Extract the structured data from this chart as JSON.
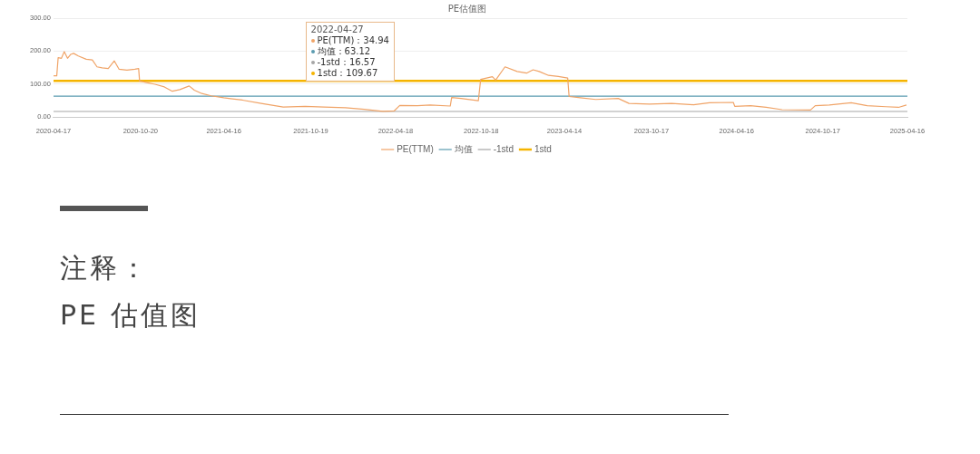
{
  "chart_data": {
    "type": "line",
    "title": "PE估值图",
    "xlim": [
      "2020-04-17",
      "2025-04-16"
    ],
    "xticks": [
      "2020-04-17",
      "2020-10-20",
      "2021-04-16",
      "2021-10-19",
      "2022-04-18",
      "2022-10-18",
      "2023-04-14",
      "2023-10-17",
      "2024-04-16",
      "2024-10-17",
      "2025-04-16"
    ],
    "ylim": [
      0,
      300
    ],
    "yticks": [
      {
        "value": 0,
        "label": "0.00"
      },
      {
        "value": 100,
        "label": "100.00"
      },
      {
        "value": 200,
        "label": "200.00"
      },
      {
        "value": 300,
        "label": "300.00"
      }
    ],
    "grid": "y",
    "legend": "bottom",
    "marker": "none",
    "series": [
      {
        "name": "PE(TTM)",
        "color": "#f0a468",
        "x": [
          "2020-04-17",
          "2020-04-24",
          "2020-04-27",
          "2020-05-04",
          "2020-05-10",
          "2020-05-17",
          "2020-05-24",
          "2020-05-30",
          "2020-06-09",
          "2020-06-26",
          "2020-07-09",
          "2020-07-19",
          "2020-07-30",
          "2020-08-12",
          "2020-08-25",
          "2020-09-04",
          "2020-09-21",
          "2020-10-08",
          "2020-10-16",
          "2020-10-18",
          "2020-10-31",
          "2020-11-20",
          "2020-12-10",
          "2020-12-27",
          "2021-01-12",
          "2021-02-01",
          "2021-02-12",
          "2021-02-28",
          "2021-03-20",
          "2021-04-16",
          "2021-05-26",
          "2021-07-05",
          "2021-08-21",
          "2021-10-07",
          "2021-11-16",
          "2022-01-01",
          "2022-02-10",
          "2022-03-22",
          "2022-04-15",
          "2022-04-27",
          "2022-06-04",
          "2022-07-01",
          "2022-08-13",
          "2022-08-16",
          "2022-09-05",
          "2022-10-12",
          "2022-10-17",
          "2022-11-11",
          "2022-11-18",
          "2022-12-08",
          "2023-01-03",
          "2023-01-23",
          "2023-02-06",
          "2023-02-19",
          "2023-03-11",
          "2023-04-01",
          "2023-04-21",
          "2023-04-24",
          "2023-05-18",
          "2023-06-20",
          "2023-08-07",
          "2023-08-30",
          "2023-10-13",
          "2023-11-29",
          "2024-01-15",
          "2024-02-18",
          "2024-04-09",
          "2024-04-12",
          "2024-05-16",
          "2024-06-18",
          "2024-07-22",
          "2024-09-21",
          "2024-10-01",
          "2024-10-31",
          "2024-12-17",
          "2025-01-20",
          "2025-03-01",
          "2025-03-28",
          "2025-04-14"
        ],
        "values": [
          125,
          125,
          180,
          178,
          198,
          178,
          190,
          193,
          185,
          175,
          173,
          152,
          149,
          147,
          170,
          145,
          142,
          145,
          147,
          109,
          105,
          99,
          91,
          78,
          83,
          94,
          81,
          71,
          64,
          58,
          51,
          41,
          30,
          32,
          30,
          28,
          23,
          17,
          18,
          34.94,
          34,
          36,
          33,
          59,
          56,
          49,
          114,
          122,
          112,
          152,
          138,
          133,
          143,
          138,
          126,
          123,
          118,
          62,
          58,
          53,
          56,
          41,
          39,
          41,
          37,
          43,
          44,
          32,
          34,
          29,
          22,
          21,
          34,
          36,
          43,
          34,
          31,
          29,
          36
        ]
      },
      {
        "name": "均值",
        "color": "#5b9bb0",
        "x": [
          "2020-04-17",
          "2025-04-16"
        ],
        "values": [
          63.12,
          63.12
        ]
      },
      {
        "name": "-1std",
        "color": "#a6a6a6",
        "x": [
          "2020-04-17",
          "2025-04-16"
        ],
        "values": [
          16.57,
          16.57
        ]
      },
      {
        "name": "1std",
        "color": "#f5b400",
        "x": [
          "2020-04-17",
          "2025-04-16"
        ],
        "values": [
          109.67,
          109.67
        ]
      }
    ],
    "annotations": [
      "2022-04-27",
      "PE(TTM)：34.94",
      "均值：63.12",
      "-1std：16.57",
      "1std：109.67",
      "注释：",
      "PE 估值图"
    ]
  }
}
